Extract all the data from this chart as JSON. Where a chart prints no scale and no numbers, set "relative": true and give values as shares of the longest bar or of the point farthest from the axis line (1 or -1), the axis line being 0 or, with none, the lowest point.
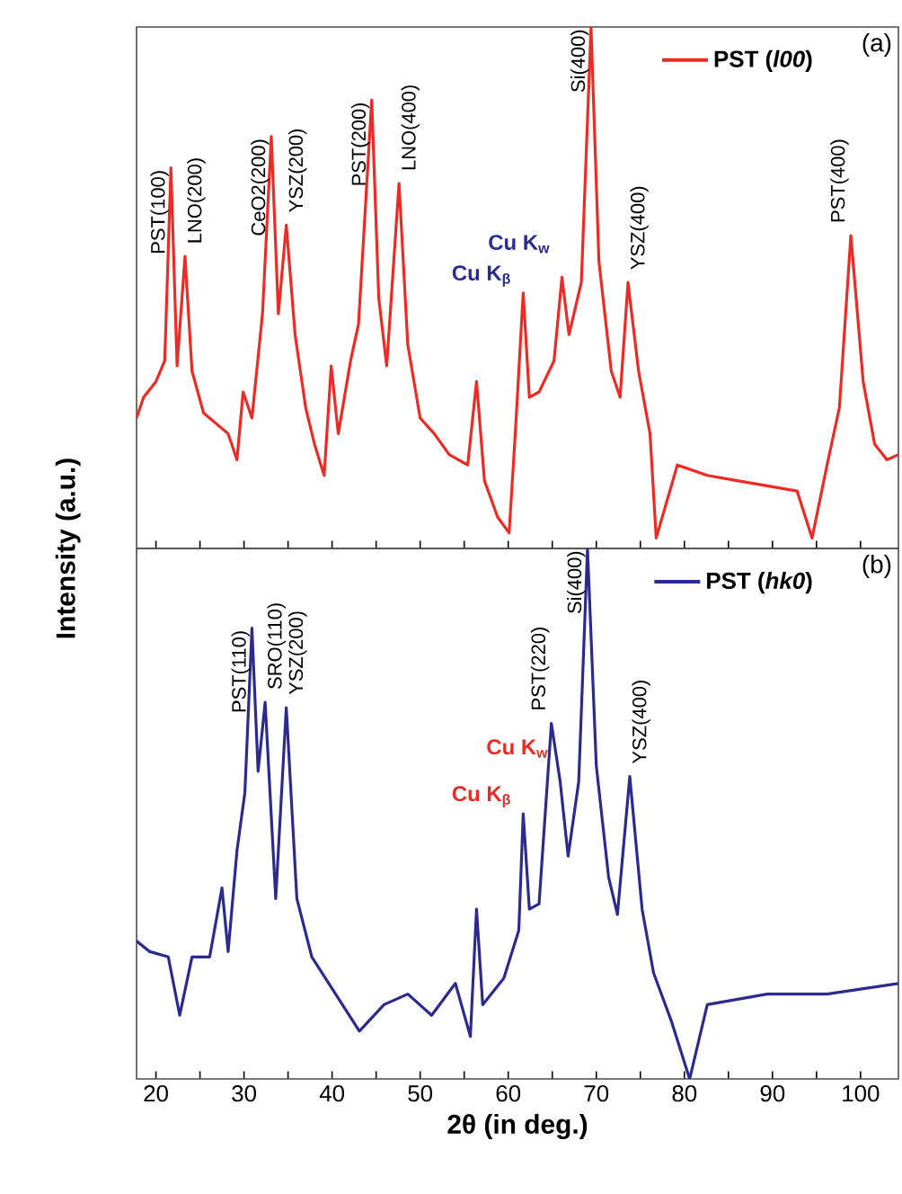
{
  "chart_data": [
    {
      "type": "line",
      "relative": true,
      "ylabel": "Intensity (a.u.)",
      "xlim": [
        17.8,
        104.3
      ],
      "xticks": [
        20,
        {
          "value": 25,
          "label": null
        },
        30,
        {
          "value": 35,
          "label": null
        },
        40,
        {
          "value": 45,
          "label": null
        },
        50,
        {
          "value": 55,
          "label": null
        },
        60,
        {
          "value": 65,
          "label": null
        },
        70,
        {
          "value": 75,
          "label": null
        },
        80,
        {
          "value": 85,
          "label": null
        },
        90,
        {
          "value": 95,
          "label": null
        },
        100
      ],
      "tick_labels": false,
      "legend": "top right",
      "series": [
        {
          "name": "PST (*l00*)",
          "color": "#ee2a24",
          "x": [
            17.8,
            18.6,
            20,
            21,
            21.7,
            22.4,
            23.3,
            24.1,
            25.4,
            28.2,
            29.2,
            29.9,
            30.9,
            32.1,
            33.1,
            33.9,
            34.8,
            35.8,
            37,
            38,
            39.1,
            39.9,
            40.7,
            42.1,
            43,
            44.5,
            45.3,
            46.2,
            47.6,
            48.6,
            50,
            51.6,
            53.3,
            55.4,
            56.4,
            57.3,
            58.8,
            60.1,
            60.8,
            61.7,
            62.4,
            63.5,
            65.2,
            66.1,
            66.9,
            68.3,
            69.4,
            70.3,
            71.7,
            72.7,
            73.6,
            74.8,
            76.1,
            76.8,
            79.2,
            82.6,
            86,
            89.4,
            92.8,
            94.5,
            96.2,
            97.6,
            98.9,
            100.3,
            101.6,
            103,
            104.3
          ],
          "values": [
            0.25,
            0.29,
            0.32,
            0.36,
            0.73,
            0.35,
            0.56,
            0.34,
            0.26,
            0.22,
            0.17,
            0.3,
            0.25,
            0.45,
            0.79,
            0.45,
            0.62,
            0.41,
            0.27,
            0.2,
            0.14,
            0.35,
            0.22,
            0.36,
            0.43,
            0.86,
            0.48,
            0.35,
            0.7,
            0.39,
            0.25,
            0.22,
            0.18,
            0.16,
            0.32,
            0.13,
            0.06,
            0.03,
            0.22,
            0.49,
            0.29,
            0.3,
            0.36,
            0.52,
            0.41,
            0.51,
            1.0,
            0.55,
            0.34,
            0.29,
            0.51,
            0.34,
            0.22,
            0.02,
            0.16,
            0.14,
            0.13,
            0.12,
            0.11,
            0.02,
            0.16,
            0.27,
            0.6,
            0.32,
            0.2,
            0.17,
            0.18
          ]
        }
      ],
      "annotations": [
        {
          "text": "PST(100)",
          "x": 21.7,
          "y": 0.73
        },
        {
          "text": "LNO(200)",
          "x": 23.3,
          "y": 0.56
        },
        {
          "text": "CeO2(200)",
          "x": 33.1,
          "y": 0.79
        },
        {
          "text": "YSZ(200)",
          "x": 34.8,
          "y": 0.62
        },
        {
          "text": "PST(200)",
          "x": 44.5,
          "y": 0.86
        },
        {
          "text": "LNO(400)",
          "x": 47.6,
          "y": 0.7
        },
        {
          "text": "Cu K$_{β}$",
          "x": 61.7,
          "y": 0.49
        },
        {
          "text": "Cu K$_{w}$",
          "x": 66.1,
          "y": 0.52
        },
        {
          "text": "Si(400)",
          "x": 69.4,
          "y": 1.0
        },
        {
          "text": "YSZ(400)",
          "x": 73.6,
          "y": 0.51
        },
        {
          "text": "PST(400)",
          "x": 98.9,
          "y": 0.6
        },
        "(a)"
      ]
    },
    {
      "type": "line",
      "relative": true,
      "xlabel": "2θ (in deg.)",
      "xlim": [
        17.8,
        104.3
      ],
      "xticks": [
        20,
        {
          "value": 25,
          "label": null
        },
        30,
        {
          "value": 35,
          "label": null
        },
        40,
        {
          "value": 45,
          "label": null
        },
        50,
        {
          "value": 55,
          "label": null
        },
        60,
        {
          "value": 65,
          "label": null
        },
        70,
        {
          "value": 75,
          "label": null
        },
        80,
        {
          "value": 85,
          "label": null
        },
        90,
        {
          "value": 95,
          "label": null
        },
        100
      ],
      "tick_labels": "x",
      "legend": "top right",
      "series": [
        {
          "name": "PST (*hk0*)",
          "color": "#2b2a8f",
          "x": [
            17.8,
            19.3,
            21.4,
            22.7,
            24.1,
            26.1,
            27.5,
            28.2,
            29.2,
            30.1,
            30.9,
            31.6,
            32.4,
            33.6,
            34.8,
            36,
            37.7,
            40.4,
            43.1,
            45.9,
            48.6,
            51.3,
            54,
            55.7,
            56.4,
            57.1,
            59.5,
            61.2,
            61.7,
            62.4,
            63.5,
            64.9,
            65.9,
            66.8,
            68,
            69,
            70,
            71.4,
            72.4,
            73.8,
            75.2,
            76.5,
            78.5,
            80.6,
            82.6,
            89.4,
            96.2,
            104.3
          ],
          "values": [
            0.26,
            0.24,
            0.23,
            0.12,
            0.23,
            0.23,
            0.36,
            0.24,
            0.43,
            0.54,
            0.85,
            0.58,
            0.71,
            0.34,
            0.7,
            0.34,
            0.23,
            0.16,
            0.09,
            0.14,
            0.16,
            0.12,
            0.18,
            0.08,
            0.32,
            0.14,
            0.19,
            0.28,
            0.5,
            0.32,
            0.33,
            0.67,
            0.56,
            0.42,
            0.56,
            1.0,
            0.59,
            0.38,
            0.31,
            0.57,
            0.32,
            0.2,
            0.11,
            0.0,
            0.14,
            0.16,
            0.16,
            0.18
          ]
        }
      ],
      "annotations": [
        {
          "text": "PST(110)",
          "x": 30.9,
          "y": 0.85
        },
        {
          "text": "SRO(110)",
          "x": 32.4,
          "y": 0.71
        },
        {
          "text": "YSZ(200)",
          "x": 34.8,
          "y": 0.7
        },
        {
          "text": "Cu K$_{β}$",
          "x": 61.7,
          "y": 0.5
        },
        {
          "text": "Cu K$_{w}$",
          "x": 65.9,
          "y": 0.56
        },
        {
          "text": "PST(220)",
          "x": 64.9,
          "y": 0.67
        },
        {
          "text": "Si(400)",
          "x": 69,
          "y": 1.0
        },
        {
          "text": "YSZ(400)",
          "x": 73.8,
          "y": 0.57
        },
        "(b)"
      ]
    }
  ]
}
